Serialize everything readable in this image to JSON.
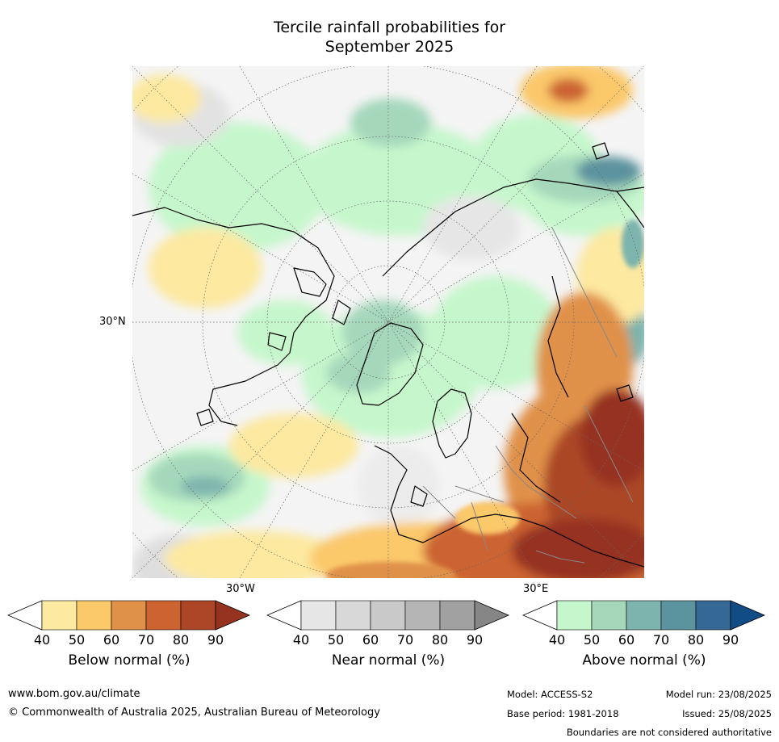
{
  "header": {
    "title_line1": "Tercile rainfall probabilities for",
    "title_line2": "September 2025"
  },
  "map": {
    "lat_label": "30°N",
    "lon_label_west": "30°W",
    "lon_label_east": "30°E"
  },
  "colorbars": [
    {
      "name": "below",
      "title": "Below normal (%)",
      "ticks": [
        "40",
        "50",
        "60",
        "70",
        "80",
        "90"
      ],
      "colors": [
        "#ffffff",
        "#fde9a0",
        "#fbc86a",
        "#e09148",
        "#cc6330",
        "#ac4627",
        "#963220"
      ]
    },
    {
      "name": "near",
      "title": "Near normal (%)",
      "ticks": [
        "40",
        "50",
        "60",
        "70",
        "80",
        "90"
      ],
      "colors": [
        "#ffffff",
        "#e6e6e6",
        "#d8d8d8",
        "#c9c9c9",
        "#b5b5b5",
        "#a1a1a1",
        "#868686"
      ]
    },
    {
      "name": "above",
      "title": "Above normal (%)",
      "ticks": [
        "40",
        "50",
        "60",
        "70",
        "80",
        "90"
      ],
      "colors": [
        "#ffffff",
        "#c6f7cc",
        "#a5d8bb",
        "#7db4ad",
        "#5b939e",
        "#366896",
        "#124c86"
      ]
    }
  ],
  "footer": {
    "url": "www.bom.gov.au/climate",
    "copyright": "© Commonwealth of Australia 2025, Australian Bureau of Meteorology",
    "model": "Model: ACCESS-S2",
    "base_period": "Base period: 1981-2018",
    "model_run": "Model run: 23/08/2025",
    "issued": "Issued: 25/08/2025",
    "disclaimer": "Boundaries are not considered authoritative"
  }
}
